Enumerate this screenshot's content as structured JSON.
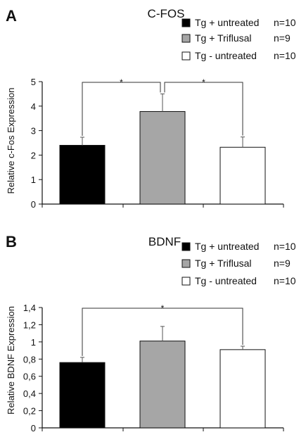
{
  "chart_data": [
    {
      "type": "bar",
      "panel_label": "A",
      "title": "C-FOS",
      "ylabel": "Relative c-Fos Expression",
      "xlabel": "",
      "ylim": [
        0,
        5
      ],
      "yticks": [
        "0",
        "1",
        "2",
        "3",
        "4",
        "5"
      ],
      "yticks_values": [
        0,
        1,
        2,
        3,
        4,
        5
      ],
      "categories": [
        "Tg + untreated",
        "Tg + Triflusal",
        "Tg - untreated"
      ],
      "values": [
        2.4,
        3.78,
        2.32
      ],
      "errors": [
        0.33,
        0.72,
        0.42
      ],
      "colors": [
        "#000000",
        "#a6a6a6",
        "#ffffff"
      ],
      "legend": [
        {
          "label": "Tg + untreated",
          "n": "n=10",
          "color": "#000000"
        },
        {
          "label": "Tg + Triflusal",
          "n": "n=9",
          "color": "#a6a6a6"
        },
        {
          "label": "Tg - untreated",
          "n": "n=10",
          "color": "#ffffff"
        }
      ],
      "legend_position": "top-right",
      "significance": [
        {
          "from": 0,
          "to": 1,
          "label": "*"
        },
        {
          "from": 1,
          "to": 2,
          "label": "*"
        }
      ]
    },
    {
      "type": "bar",
      "panel_label": "B",
      "title": "BDNF",
      "ylabel": "Relative BDNF Expression",
      "xlabel": "",
      "ylim": [
        0,
        1.4
      ],
      "yticks": [
        "0",
        "0,2",
        "0,4",
        "0,6",
        "0,8",
        "1",
        "1,2",
        "1,4"
      ],
      "yticks_values": [
        0,
        0.2,
        0.4,
        0.6,
        0.8,
        1.0,
        1.2,
        1.4
      ],
      "categories": [
        "Tg + untreated",
        "Tg + Triflusal",
        "Tg - untreated"
      ],
      "values": [
        0.76,
        1.01,
        0.91
      ],
      "errors": [
        0.06,
        0.17,
        0.04
      ],
      "colors": [
        "#000000",
        "#a6a6a6",
        "#ffffff"
      ],
      "legend": [
        {
          "label": "Tg + untreated",
          "n": "n=10",
          "color": "#000000"
        },
        {
          "label": "Tg + Triflusal",
          "n": "n=9",
          "color": "#a6a6a6"
        },
        {
          "label": "Tg - untreated",
          "n": "n=10",
          "color": "#ffffff"
        }
      ],
      "legend_position": "top-right",
      "significance": [
        {
          "from": 0,
          "to": 2,
          "label": "*"
        }
      ]
    }
  ]
}
